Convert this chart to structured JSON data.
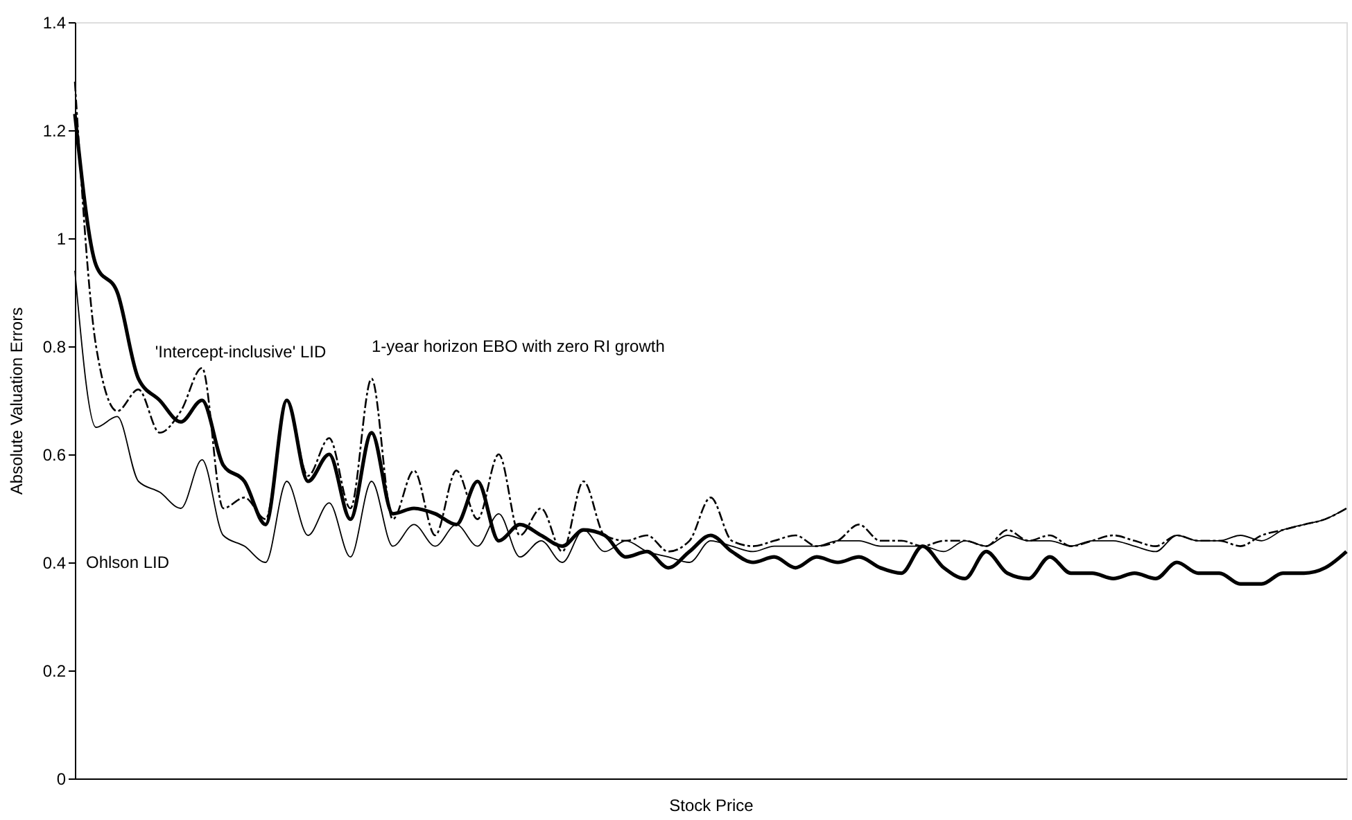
{
  "chart_data": {
    "type": "line",
    "xlabel": "Stock Price",
    "ylabel": "Absolute Valuation Errors",
    "categories": [
      null,
      null,
      null,
      null,
      null,
      null,
      null,
      null,
      null,
      null,
      null,
      null,
      null,
      null,
      null,
      null,
      null,
      null,
      null,
      null,
      null,
      null,
      null,
      null,
      null,
      null,
      null,
      null,
      null,
      null,
      null,
      null,
      null,
      null,
      null,
      null,
      null,
      null,
      null,
      null,
      null,
      null,
      null,
      null,
      null,
      null,
      null,
      null,
      null,
      null,
      null,
      null,
      null,
      null,
      null,
      null,
      null,
      null,
      null,
      null,
      null
    ],
    "series": [
      {
        "name": "'Intercept-inclusive' LID",
        "color": "#000000",
        "line_style": "solid",
        "values": [
          1.23,
          0.95,
          0.9,
          0.74,
          0.7,
          0.66,
          0.7,
          0.58,
          0.55,
          0.47,
          0.7,
          0.55,
          0.6,
          0.48,
          0.64,
          0.49,
          0.5,
          0.49,
          0.47,
          0.55,
          0.44,
          0.47,
          0.45,
          0.43,
          0.46,
          0.45,
          0.41,
          0.42,
          0.39,
          0.42,
          0.45,
          0.42,
          0.4,
          0.41,
          0.39,
          0.41,
          0.4,
          0.41,
          0.39,
          0.38,
          0.43,
          0.39,
          0.37,
          0.42,
          0.38,
          0.37,
          0.41,
          0.38,
          0.38,
          0.37,
          0.38,
          0.37,
          0.4,
          0.38,
          0.38,
          0.36,
          0.36,
          0.38,
          0.38,
          0.39,
          0.42
        ]
      },
      {
        "name": "1-year horizon EBO with zero RI growth",
        "color": "#000000",
        "line_style": "dashed",
        "values": [
          1.29,
          0.8,
          0.68,
          0.72,
          0.64,
          0.68,
          0.76,
          0.5,
          0.52,
          0.48,
          0.7,
          0.56,
          0.63,
          0.5,
          0.74,
          0.48,
          0.57,
          0.45,
          0.57,
          0.48,
          0.6,
          0.45,
          0.5,
          0.42,
          0.55,
          0.45,
          0.44,
          0.45,
          0.42,
          0.44,
          0.52,
          0.44,
          0.43,
          0.44,
          0.45,
          0.43,
          0.44,
          0.47,
          0.44,
          0.44,
          0.43,
          0.44,
          0.44,
          0.43,
          0.46,
          0.44,
          0.45,
          0.43,
          0.44,
          0.45,
          0.44,
          0.43,
          0.45,
          0.44,
          0.44,
          0.43,
          0.45,
          0.46,
          0.47,
          0.48,
          0.5
        ]
      },
      {
        "name": "Ohlson LID",
        "color": "#000000",
        "line_style": "solid",
        "values": [
          0.94,
          0.65,
          0.67,
          0.55,
          0.53,
          0.5,
          0.59,
          0.45,
          0.43,
          0.4,
          0.55,
          0.45,
          0.51,
          0.41,
          0.55,
          0.43,
          0.47,
          0.43,
          0.47,
          0.43,
          0.49,
          0.41,
          0.44,
          0.4,
          0.46,
          0.42,
          0.44,
          0.42,
          0.41,
          0.4,
          0.44,
          0.43,
          0.42,
          0.43,
          0.43,
          0.43,
          0.44,
          0.44,
          0.43,
          0.43,
          0.43,
          0.42,
          0.44,
          0.43,
          0.45,
          0.44,
          0.44,
          0.43,
          0.44,
          0.44,
          0.43,
          0.42,
          0.45,
          0.44,
          0.44,
          0.45,
          0.44,
          0.46,
          0.47,
          0.48,
          0.5
        ]
      }
    ],
    "ylim": [
      0,
      1.4
    ],
    "yticks": [
      0,
      0.2,
      0.4,
      0.6,
      0.8,
      1,
      1.2,
      1.4
    ],
    "grid": false,
    "marker": "none"
  }
}
